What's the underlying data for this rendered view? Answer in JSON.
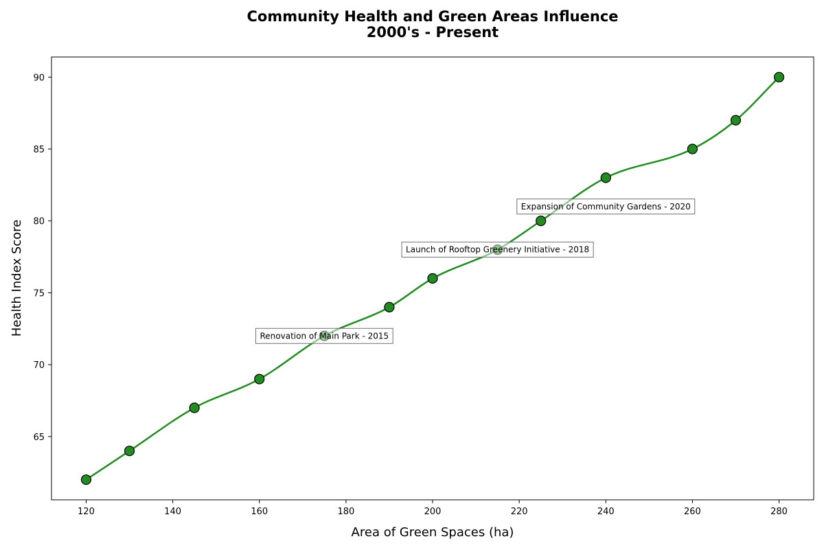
{
  "chart_data": {
    "type": "line",
    "title_line1": "Community Health and Green Areas Influence",
    "title_line2": "2000's - Present",
    "xlabel": "Area of Green Spaces (ha)",
    "ylabel": "Health Index Score",
    "xlim": [
      112,
      288
    ],
    "ylim": [
      60.6,
      91.4
    ],
    "xticks": [
      120,
      140,
      160,
      180,
      200,
      220,
      240,
      260,
      280
    ],
    "yticks": [
      65,
      70,
      75,
      80,
      85,
      90
    ],
    "grid": false,
    "line_color": "#228B22",
    "marker_color": "#228B22",
    "series": [
      {
        "x": [
          120,
          130,
          145,
          160,
          175,
          190,
          200,
          215,
          225,
          240,
          260,
          270,
          280
        ],
        "y": [
          62,
          64,
          67,
          69,
          72,
          74,
          76,
          78,
          80,
          83,
          85,
          87,
          90
        ]
      }
    ],
    "annotations": [
      {
        "text": "Renovation of Main Park - 2015",
        "x": 175,
        "y": 72
      },
      {
        "text": "Launch of Rooftop Greenery Initiative - 2018",
        "x": 215,
        "y": 78
      },
      {
        "text": "Expansion of Community Gardens - 2020",
        "x": 240,
        "y": 81
      }
    ]
  }
}
